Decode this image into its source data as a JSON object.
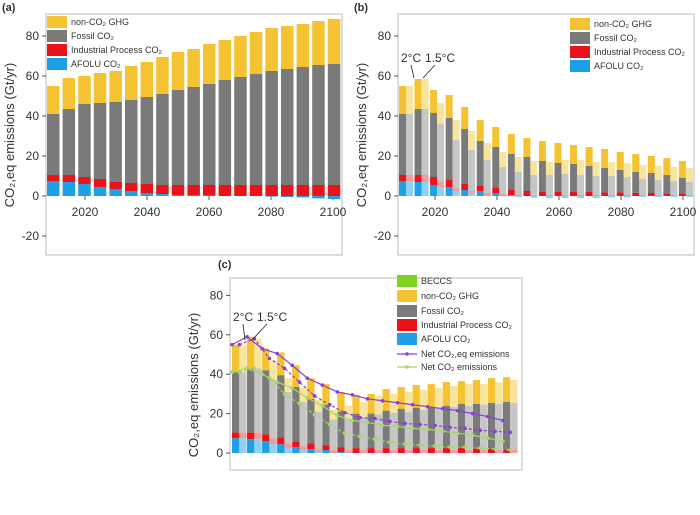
{
  "chart_data": [
    {
      "panel": "(a)",
      "type": "bar",
      "stacked": true,
      "ylabel": "CO₂,eq emissions (Gt/yr)",
      "ylim": [
        -30,
        90
      ],
      "yticks": [
        -20,
        0,
        20,
        40,
        60,
        80
      ],
      "xticks": [
        2020,
        2040,
        2060,
        2080,
        2100
      ],
      "legend_position": "top-left",
      "x": [
        2010,
        2015,
        2020,
        2025,
        2030,
        2035,
        2040,
        2045,
        2050,
        2055,
        2060,
        2065,
        2070,
        2075,
        2080,
        2085,
        2090,
        2095,
        2100
      ],
      "series": [
        {
          "name": "AFOLU CO₂",
          "color": "#1f9fe6",
          "values": [
            7.5,
            7,
            6,
            4.5,
            3.5,
            2.5,
            1.5,
            1,
            0.5,
            0.3,
            0.2,
            0,
            0,
            0,
            -0.3,
            -0.5,
            -0.7,
            -1.2,
            -1.5
          ]
        },
        {
          "name": "Industrial Process CO₂",
          "color": "#e8141a",
          "values": [
            3,
            3.5,
            3.5,
            4,
            3.5,
            4,
            4.5,
            4.5,
            5,
            5.2,
            5.3,
            5.5,
            5.5,
            5.5,
            5.5,
            5.5,
            5.5,
            5.5,
            5.5
          ]
        },
        {
          "name": "Fossil CO₂",
          "color": "#7a7a7a",
          "values": [
            30.5,
            33,
            36.5,
            38,
            40,
            41.5,
            43.5,
            45.5,
            47.5,
            49,
            50.5,
            52.5,
            54,
            55.5,
            57,
            58,
            59,
            60,
            60.5
          ]
        },
        {
          "name": "non-CO₂ GHG",
          "color": "#f5c232",
          "values": [
            14,
            15.5,
            14,
            15,
            15.5,
            17,
            17.5,
            18.5,
            19,
            19,
            20,
            20,
            20.5,
            21,
            21.5,
            21.5,
            21.5,
            22,
            22.5
          ]
        }
      ]
    },
    {
      "panel": "(b)",
      "type": "bar",
      "stacked": true,
      "ylabel": "CO₂,eq emissions (Gt/yr)",
      "ylim": [
        -30,
        90
      ],
      "yticks": [
        -20,
        0,
        20,
        40,
        60,
        80
      ],
      "xticks": [
        2020,
        2040,
        2060,
        2080,
        2100
      ],
      "legend_position": "top-right",
      "annotations": [
        "2°C",
        "1.5°C"
      ],
      "x": [
        2010,
        2015,
        2020,
        2025,
        2030,
        2035,
        2040,
        2045,
        2050,
        2055,
        2060,
        2065,
        2070,
        2075,
        2080,
        2085,
        2090,
        2095,
        2100
      ],
      "legend": [
        {
          "name": "non-CO₂ GHG",
          "color": "#f5c232"
        },
        {
          "name": "Fossil CO₂",
          "color": "#7a7a7a"
        },
        {
          "name": "Industrial Process CO₂",
          "color": "#e8141a"
        },
        {
          "name": "AFOLU CO₂",
          "color": "#1f9fe6"
        }
      ],
      "scenarios": [
        {
          "name": "2°C",
          "style": "solid",
          "series": [
            {
              "name": "AFOLU CO₂",
              "color": "#1f9fe6",
              "values": [
                7.5,
                7,
                5.5,
                4.5,
                3,
                2.5,
                1.5,
                0.5,
                0,
                0,
                0,
                0,
                0,
                0,
                0,
                0,
                0,
                0,
                0
              ]
            },
            {
              "name": "Industrial Process CO₂",
              "color": "#e8141a",
              "values": [
                3,
                3.5,
                4,
                3.5,
                3,
                2.5,
                2.5,
                2.5,
                2.5,
                2.2,
                2,
                2,
                2,
                1.8,
                1.8,
                1.6,
                1.5,
                1.3,
                1.2
              ]
            },
            {
              "name": "Fossil CO₂",
              "color": "#7a7a7a",
              "values": [
                30.5,
                33,
                32,
                31,
                27.5,
                22.5,
                20.5,
                18,
                17,
                15.3,
                14.5,
                14,
                13,
                12.2,
                11.2,
                10.4,
                10,
                9.2,
                7.8
              ]
            },
            {
              "name": "non-CO₂ GHG",
              "color": "#f5c232",
              "values": [
                14,
                15,
                11.5,
                11.5,
                11,
                10.5,
                10,
                10,
                9.5,
                10,
                10,
                9.5,
                9.5,
                9.5,
                9,
                9,
                8.5,
                8.5,
                8.5
              ]
            }
          ]
        },
        {
          "name": "1.5°C",
          "style": "light",
          "series": [
            {
              "name": "AFOLU CO₂",
              "color": "#8fd0f5",
              "values": [
                7.5,
                7,
                4.5,
                2.5,
                1.5,
                0.5,
                0,
                -0.5,
                -0.8,
                -1,
                -1,
                -1,
                -1,
                -0.8,
                -0.8,
                -0.5,
                -0.5,
                -0.5,
                -0.5
              ]
            },
            {
              "name": "Industrial Process CO₂",
              "color": "#f49a9a",
              "values": [
                3,
                3.5,
                2.5,
                1.5,
                1,
                1,
                1,
                0.8,
                0.6,
                0.5,
                0.5,
                0.5,
                0.5,
                0.5,
                0.5,
                0.5,
                0.5,
                0.5,
                0.5
              ]
            },
            {
              "name": "Fossil CO₂",
              "color": "#c6c6c6",
              "values": [
                30.5,
                33,
                29,
                24,
                20.5,
                16.5,
                13.5,
                11.2,
                9.9,
                10,
                10.5,
                10,
                9.5,
                9.5,
                9,
                8,
                7.5,
                7,
                6.5
              ]
            },
            {
              "name": "non-CO₂ GHG",
              "color": "#f9e49e",
              "values": [
                14,
                15,
                10.5,
                10,
                9.5,
                8.5,
                7.5,
                7.5,
                7,
                6.5,
                7,
                7.5,
                7,
                7,
                7,
                7,
                7,
                7,
                7
              ]
            }
          ]
        }
      ]
    },
    {
      "panel": "(c)",
      "type": "bar",
      "stacked": true,
      "ylabel": "CO₂,eq emissions (Gt/yr)",
      "ylim": [
        0,
        90
      ],
      "yticks": [
        0,
        20,
        40,
        60,
        80
      ],
      "legend_position": "top-right",
      "annotations": [
        "2°C",
        "1.5°C"
      ],
      "x": [
        2010,
        2015,
        2020,
        2025,
        2030,
        2035,
        2040,
        2045,
        2050,
        2055,
        2060,
        2065,
        2070,
        2075,
        2080,
        2085,
        2090,
        2095,
        2100
      ],
      "legend": [
        {
          "name": "BECCS",
          "color": "#7ed321",
          "kind": "box"
        },
        {
          "name": "non-CO₂ GHG",
          "color": "#f5c232",
          "kind": "box"
        },
        {
          "name": "Fossil CO₂",
          "color": "#7a7a7a",
          "kind": "box"
        },
        {
          "name": "Industrial Process CO₂",
          "color": "#e8141a",
          "kind": "box"
        },
        {
          "name": "AFOLU CO₂",
          "color": "#1f9fe6",
          "kind": "box"
        },
        {
          "name": "Net CO₂,eq emissions",
          "color": "#8a3fd0",
          "kind": "line"
        },
        {
          "name": "Net CO₂ emissions",
          "color": "#a5d66a",
          "kind": "line"
        }
      ],
      "scenarios": [
        {
          "name": "2°C",
          "style": "solid",
          "series": [
            {
              "name": "AFOLU CO₂",
              "color": "#1f9fe6",
              "values": [
                7.5,
                7,
                6,
                4.5,
                3,
                2,
                1.5,
                0.5,
                0,
                0,
                0,
                0,
                0,
                0,
                0,
                0,
                0,
                0,
                0
              ]
            },
            {
              "name": "Industrial Process CO₂",
              "color": "#e8141a",
              "values": [
                3,
                3.5,
                3.5,
                3.5,
                3,
                3,
                2.5,
                2.5,
                2.5,
                2.5,
                2.5,
                2.5,
                2.5,
                2.5,
                2.5,
                2.5,
                2.2,
                2,
                1.8
              ]
            },
            {
              "name": "Fossil CO₂",
              "color": "#7a7a7a",
              "values": [
                30.5,
                32.5,
                32.5,
                31.5,
                27.5,
                22.5,
                20.5,
                18,
                17.5,
                17.5,
                19,
                20,
                20.5,
                21,
                21.5,
                22.5,
                22.8,
                23.5,
                24.2
              ]
            },
            {
              "name": "non-CO₂ GHG",
              "color": "#f5c232",
              "values": [
                14,
                16,
                11,
                11.5,
                11,
                10.5,
                10.5,
                10,
                9.5,
                10,
                11,
                11,
                11.5,
                11.5,
                12,
                11.5,
                12,
                12.5,
                12.5
              ]
            }
          ]
        },
        {
          "name": "1.5°C",
          "style": "light",
          "series": [
            {
              "name": "AFOLU CO₂",
              "color": "#8fd0f5",
              "values": [
                7.5,
                7,
                4.5,
                2.5,
                1.5,
                0.5,
                0,
                0,
                0,
                0,
                0,
                0,
                0,
                0,
                0,
                0,
                0,
                0,
                0
              ]
            },
            {
              "name": "Industrial Process CO₂",
              "color": "#f49a9a",
              "values": [
                3,
                3.5,
                3,
                2.5,
                2,
                1.5,
                1.5,
                1.5,
                1.5,
                1.5,
                1.5,
                1.5,
                1.5,
                1.5,
                1.5,
                1.5,
                1.5,
                1.5,
                1.5
              ]
            },
            {
              "name": "Fossil CO₂",
              "color": "#c6c6c6",
              "values": [
                30.5,
                32.5,
                29.5,
                26,
                22.5,
                19,
                15.5,
                15.5,
                16.5,
                18,
                19,
                19.5,
                20.5,
                21.5,
                22,
                22.5,
                23,
                23.5,
                24
              ]
            },
            {
              "name": "non-CO₂ GHG",
              "color": "#f9e49e",
              "values": [
                14,
                15,
                10,
                7,
                7,
                6,
                5,
                7,
                8,
                9.5,
                9.5,
                10,
                10,
                10,
                10.5,
                11,
                10.5,
                11,
                11.5
              ]
            }
          ]
        }
      ],
      "lines": [
        {
          "name": "Net CO₂,eq emissions",
          "scenario": "2°C",
          "color": "#8a3fd0",
          "values": [
            55,
            59,
            53,
            50.5,
            44.5,
            38,
            34.5,
            31,
            29.5,
            27.5,
            26.5,
            25.5,
            24.5,
            23.5,
            22.5,
            21.5,
            20,
            18.5,
            16.5
          ]
        },
        {
          "name": "Net CO₂,eq emissions",
          "scenario": "1.5°C",
          "color": "#8a3fd0",
          "values": [
            55,
            58,
            48,
            43,
            36,
            29,
            24.5,
            20.5,
            18,
            17.5,
            16,
            15,
            14.5,
            14,
            13,
            12.5,
            11.5,
            11,
            10.5
          ]
        },
        {
          "name": "Net CO₂ emissions",
          "scenario": "2°C",
          "color": "#a5d66a",
          "values": [
            41,
            43,
            40,
            36,
            33,
            28,
            24,
            19,
            16.5,
            15.5,
            14,
            13.5,
            12.5,
            12,
            11,
            10,
            9,
            7.5,
            6
          ]
        },
        {
          "name": "Net CO₂ emissions",
          "scenario": "1.5°C",
          "color": "#a5d66a",
          "values": [
            41,
            43,
            38,
            30,
            25,
            19.5,
            14.5,
            10,
            8.5,
            7,
            5.5,
            4.5,
            4,
            3.5,
            3,
            3,
            2.5,
            2,
            1.5
          ]
        }
      ]
    }
  ]
}
